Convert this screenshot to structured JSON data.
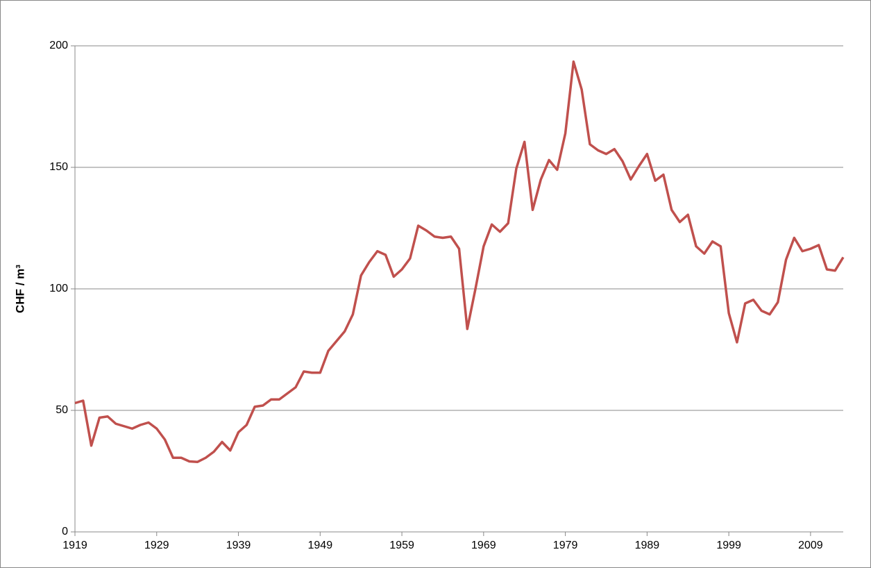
{
  "chart_data": {
    "type": "line",
    "y_label": "CHF / m³",
    "categories": [
      "1919",
      null,
      null,
      null,
      null,
      null,
      null,
      null,
      null,
      null,
      "1929",
      null,
      null,
      null,
      null,
      null,
      null,
      null,
      null,
      null,
      "1939",
      null,
      null,
      null,
      null,
      null,
      null,
      null,
      null,
      null,
      "1949",
      null,
      null,
      null,
      null,
      null,
      null,
      null,
      null,
      null,
      "1959",
      null,
      null,
      null,
      null,
      null,
      null,
      null,
      null,
      null,
      "1969",
      null,
      null,
      null,
      null,
      null,
      null,
      null,
      null,
      null,
      "1979",
      null,
      null,
      null,
      null,
      null,
      null,
      null,
      null,
      null,
      "1989",
      null,
      null,
      null,
      null,
      null,
      null,
      null,
      null,
      null,
      "1999",
      null,
      null,
      null,
      null,
      null,
      null,
      null,
      null,
      null,
      "2009",
      null,
      null,
      null,
      null
    ],
    "values": [
      53,
      54,
      35.5,
      47,
      47.5,
      44.5,
      43.5,
      42.5,
      44,
      45,
      42.5,
      38,
      30.5,
      30.5,
      29,
      28.8,
      30.5,
      33,
      37,
      33.5,
      41,
      44,
      51.5,
      52,
      54.5,
      54.5,
      57,
      59.5,
      66,
      65.5,
      65.5,
      74.5,
      78.5,
      82.5,
      89.5,
      105.5,
      111,
      115.5,
      114,
      105,
      108,
      112.5,
      126,
      124,
      121.5,
      121,
      121.5,
      116.5,
      83.5,
      100,
      117.5,
      126.5,
      123.5,
      127,
      149.5,
      160.5,
      132.5,
      145,
      153,
      149,
      164,
      193.5,
      182,
      159.5,
      157,
      155.5,
      157.5,
      152.5,
      145,
      150.5,
      155.5,
      144.5,
      147,
      132.5,
      127.5,
      130.5,
      117.5,
      114.5,
      119.5,
      117.5,
      90,
      78,
      94,
      95.5,
      91,
      89.5,
      94.5,
      112,
      121,
      115.5,
      116.5,
      118,
      108,
      107.5,
      113
    ],
    "color": "#c0504d",
    "ylim": [
      0,
      200
    ],
    "yticks": [
      0,
      50,
      100,
      150,
      200
    ],
    "grid": true
  }
}
